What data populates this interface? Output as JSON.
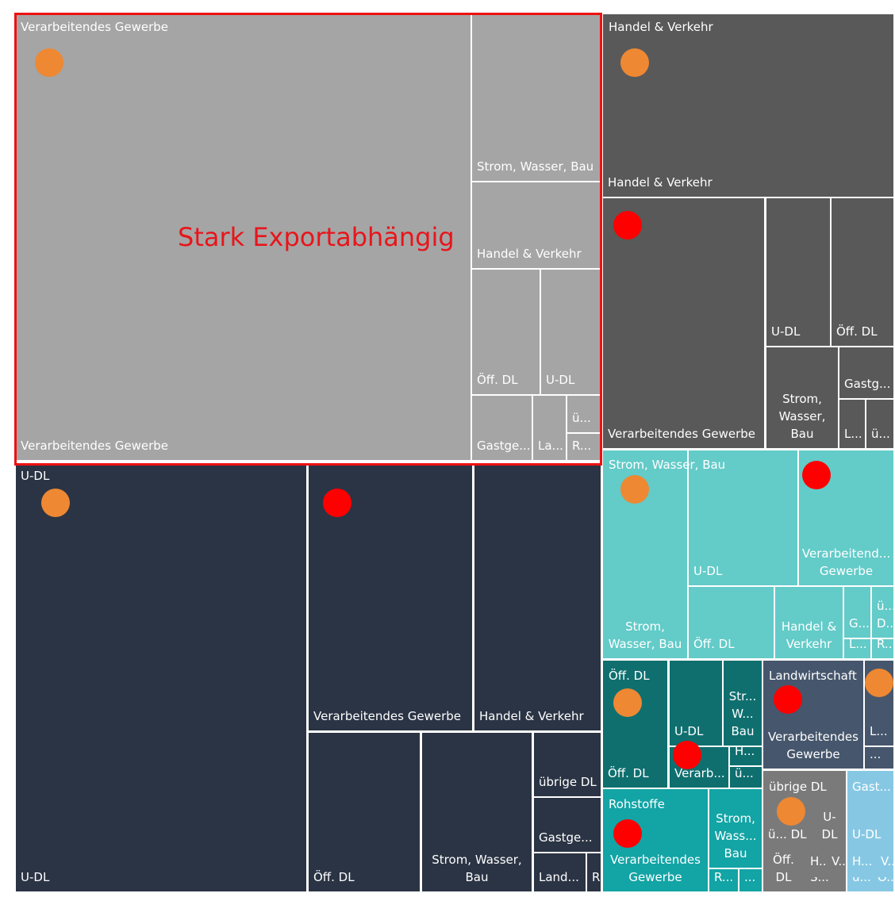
{
  "annotation": "Stark Exportabhängig",
  "groups": [
    {
      "label": "Verarbeitendes Gewerbe",
      "cells": [
        "Verarbeitendes Gewerbe",
        "Strom, Wasser, Bau",
        "Handel & Verkehr",
        "Öff. DL",
        "U-DL",
        "Gastge...",
        "La...",
        "ü...",
        "R..."
      ]
    },
    {
      "label": "Handel & Verkehr",
      "cells": [
        "Handel & Verkehr",
        "Verarbeitendes Gewerbe",
        "U-DL",
        "Öff. DL",
        "Strom, Wasser, Bau",
        "Gastg...",
        "L...",
        "ü..."
      ]
    },
    {
      "label": "U-DL",
      "cells": [
        "U-DL",
        "Verarbeitendes Gewerbe",
        "Handel & Verkehr",
        "Öff. DL",
        "Strom, Wasser, Bau",
        "übrige DL",
        "Gastge...",
        "Land...",
        "R..."
      ]
    },
    {
      "label": "Strom, Wasser, Bau",
      "cells": [
        "Strom, Wasser, Bau",
        "U-DL",
        "Verarbeitend... Gewerbe",
        "Öff. DL",
        "Handel & Verkehr",
        "G...",
        "ü... D...",
        "L...",
        "R..."
      ]
    },
    {
      "label": "Öff. DL",
      "cells": [
        "Öff. DL",
        "U-DL",
        "Str... W... Bau",
        "Verarb...",
        "H...",
        "ü..."
      ]
    },
    {
      "label": "Rohstoffe",
      "cells": [
        "Verarbeitendes Gewerbe",
        "Strom, Wass... Bau",
        "R...",
        "..."
      ]
    },
    {
      "label": "Landwirtschaft",
      "cells": [
        "Verarbeitendes Gewerbe",
        "L...",
        "..."
      ]
    },
    {
      "label": "übrige DL",
      "cells": [
        "ü... DL",
        "U- DL",
        "Öff. DL",
        "H...",
        "V...",
        "S..."
      ]
    },
    {
      "label": "Gast...",
      "cells": [
        "U-DL",
        "H...",
        "V...",
        "ü...",
        "Ö..."
      ]
    }
  ]
}
